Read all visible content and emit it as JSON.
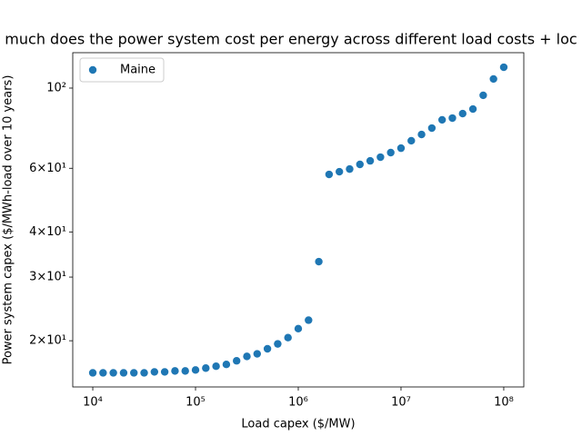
{
  "chart_data": {
    "type": "scatter",
    "title": "much does the power system cost per energy across different load costs + loc",
    "xlabel": "Load capex ($/MW)",
    "ylabel": "Power system capex ($/MWh-load over 10 years)",
    "xscale": "log",
    "yscale": "log",
    "xlim": [
      6383,
      156700000
    ],
    "ylim": [
      14.9,
      125.3
    ],
    "xticks": [
      {
        "value": 10000,
        "label": "10⁴"
      },
      {
        "value": 100000,
        "label": "10⁵"
      },
      {
        "value": 1000000,
        "label": "10⁶"
      },
      {
        "value": 10000000,
        "label": "10⁷"
      },
      {
        "value": 100000000,
        "label": "10⁸"
      }
    ],
    "yticks": [
      {
        "value": 20,
        "label": "2×10¹"
      },
      {
        "value": 30,
        "label": "3×10¹"
      },
      {
        "value": 40,
        "label": "4×10¹"
      },
      {
        "value": 60,
        "label": "6×10¹"
      },
      {
        "value": 100,
        "label": "10²"
      }
    ],
    "legend": "upper left",
    "series": [
      {
        "name": "Maine",
        "color": "#1f77b4",
        "x": [
          10000,
          12589,
          15849,
          19953,
          25119,
          31623,
          39811,
          50119,
          63096,
          79433,
          100000,
          125893,
          158489,
          199526,
          251189,
          316228,
          398107,
          501187,
          630957,
          794328,
          1000000,
          1258925,
          1584893,
          1995262,
          2511886,
          3162278,
          3981072,
          5011872,
          6309573,
          7943282,
          10000000,
          12589254,
          15848932,
          19952623,
          25118864,
          31622777,
          39810717,
          50118723,
          63095734,
          79432823,
          100000000
        ],
        "values": [
          16.3,
          16.3,
          16.3,
          16.3,
          16.3,
          16.3,
          16.4,
          16.4,
          16.5,
          16.5,
          16.6,
          16.8,
          17.0,
          17.2,
          17.6,
          18.1,
          18.4,
          19.0,
          19.6,
          20.4,
          21.6,
          22.8,
          33.1,
          57.7,
          58.7,
          59.7,
          61.5,
          62.9,
          64.4,
          66.3,
          68.2,
          71.5,
          74.4,
          77.5,
          81.7,
          82.6,
          85.0,
          87.5,
          95.5,
          106.0,
          114.2
        ]
      }
    ]
  }
}
